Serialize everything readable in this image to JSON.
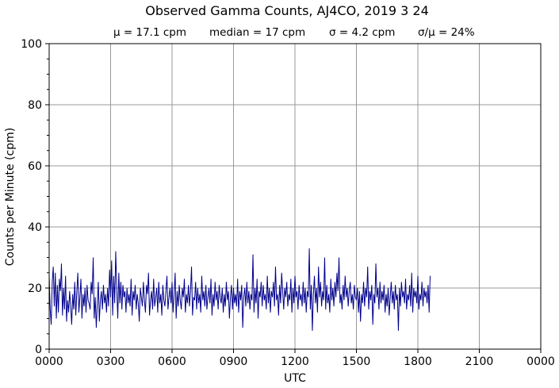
{
  "chart_data": {
    "type": "line",
    "title": "Observed Gamma Counts, AJ4CO, 2019 3 24",
    "subtitle": [
      "μ = 17.1 cpm",
      "median = 17 cpm",
      "σ = 4.2 cpm",
      "σ/μ = 24%"
    ],
    "xlabel": "UTC",
    "ylabel": "Counts per Minute (cpm)",
    "xlim": [
      0,
      1440
    ],
    "ylim": [
      0,
      100
    ],
    "grid": true,
    "x_ticks": [
      {
        "v": 0,
        "label": "0000"
      },
      {
        "v": 180,
        "label": "0300"
      },
      {
        "v": 360,
        "label": "0600"
      },
      {
        "v": 540,
        "label": "0900"
      },
      {
        "v": 720,
        "label": "1200"
      },
      {
        "v": 900,
        "label": "1500"
      },
      {
        "v": 1080,
        "label": "1800"
      },
      {
        "v": 1260,
        "label": "2100"
      },
      {
        "v": 1440,
        "label": "0000"
      }
    ],
    "y_ticks": [
      0,
      20,
      40,
      60,
      80,
      100
    ],
    "series": [
      {
        "name": "cpm",
        "color": "#00008B",
        "x_step_minutes": 3,
        "values": [
          24,
          13,
          8,
          22,
          27,
          14,
          25,
          10,
          21,
          12,
          23,
          19,
          28,
          11,
          20,
          13,
          24,
          9,
          16,
          12,
          19,
          14,
          8,
          18,
          13,
          22,
          11,
          19,
          25,
          12,
          17,
          23,
          10,
          18,
          14,
          20,
          12,
          21,
          16,
          15,
          13,
          22,
          18,
          30,
          10,
          17,
          7,
          15,
          22,
          9,
          16,
          19,
          13,
          21,
          15,
          18,
          12,
          20,
          14,
          26,
          17,
          29,
          11,
          24,
          15,
          32,
          20,
          10,
          25,
          15,
          22,
          13,
          21,
          17,
          19,
          12,
          20,
          15,
          18,
          14,
          23,
          11,
          19,
          16,
          21,
          13,
          18,
          15,
          9,
          20,
          17,
          14,
          22,
          16,
          12,
          21,
          18,
          25,
          11,
          16,
          19,
          13,
          23,
          14,
          17,
          20,
          12,
          22,
          15,
          18,
          11,
          21,
          16,
          14,
          19,
          24,
          13,
          17,
          20,
          15,
          22,
          12,
          18,
          25,
          10,
          19,
          14,
          21,
          16,
          13,
          20,
          17,
          23,
          12,
          18,
          15,
          21,
          14,
          19,
          27,
          11,
          17,
          16,
          22,
          13,
          20,
          15,
          18,
          12,
          24,
          16,
          19,
          14,
          21,
          13,
          17,
          20,
          15,
          23,
          11,
          18,
          14,
          22,
          16,
          19,
          13,
          21,
          17,
          15,
          20,
          12,
          18,
          14,
          22,
          16,
          19,
          10,
          17,
          21,
          13,
          20,
          15,
          18,
          14,
          23,
          12,
          19,
          16,
          21,
          7,
          17,
          20,
          14,
          22,
          15,
          19,
          13,
          18,
          16,
          31,
          12,
          20,
          15,
          23,
          10,
          19,
          17,
          22,
          14,
          21,
          16,
          18,
          13,
          24,
          15,
          20,
          12,
          19,
          17,
          22,
          14,
          27,
          16,
          18,
          11,
          21,
          15,
          25,
          19,
          13,
          20,
          17,
          22,
          14,
          18,
          16,
          23,
          12,
          20,
          15,
          24,
          17,
          19,
          13,
          21,
          16,
          18,
          14,
          22,
          15,
          20,
          12,
          19,
          17,
          33,
          13,
          21,
          6,
          18,
          24,
          15,
          20,
          12,
          27,
          17,
          22,
          14,
          19,
          16,
          30,
          13,
          21,
          15,
          18,
          12,
          23,
          16,
          20,
          14,
          22,
          17,
          25,
          19,
          30,
          15,
          18,
          13,
          21,
          16,
          24,
          17,
          20,
          14,
          19,
          22,
          15,
          18,
          13,
          21,
          17,
          16,
          20,
          12,
          19,
          9,
          18,
          15,
          22,
          14,
          20,
          17,
          27,
          13,
          19,
          16,
          21,
          8,
          18,
          15,
          28,
          17,
          20,
          13,
          22,
          15,
          19,
          16,
          21,
          12,
          18,
          14,
          20,
          11,
          17,
          22,
          15,
          19,
          13,
          21,
          16,
          18,
          6,
          20,
          14,
          22,
          17,
          19,
          15,
          23,
          13,
          18,
          16,
          21,
          14,
          25,
          12,
          20,
          17,
          19,
          15,
          24,
          13,
          18,
          16,
          22,
          14,
          20,
          17,
          19,
          15,
          21,
          12,
          24
        ]
      }
    ]
  }
}
